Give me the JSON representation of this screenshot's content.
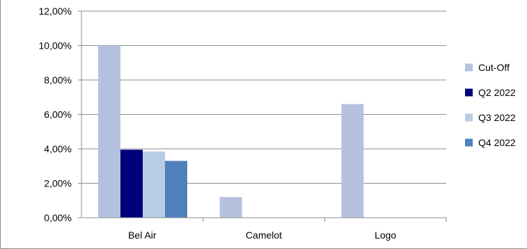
{
  "chart_data": {
    "type": "bar",
    "categories": [
      "Bel Air",
      "Camelot",
      "Logo"
    ],
    "series": [
      {
        "name": "Cut-Off",
        "color": "#b4c2e0",
        "values": [
          10.0,
          1.2,
          6.6
        ]
      },
      {
        "name": "Q2 2022",
        "color": "#00007a",
        "values": [
          3.95,
          null,
          null
        ]
      },
      {
        "name": "Q3 2022",
        "color": "#b8cce4",
        "values": [
          3.85,
          null,
          null
        ]
      },
      {
        "name": "Q4 2022",
        "color": "#4f81bd",
        "values": [
          3.3,
          null,
          null
        ]
      }
    ],
    "yticks": [
      "0,00%",
      "2,00%",
      "4,00%",
      "6,00%",
      "8,00%",
      "10,00%",
      "12,00%"
    ],
    "ylim": [
      0,
      12
    ],
    "ystep": 2,
    "grid": true,
    "legend_position": "right"
  }
}
